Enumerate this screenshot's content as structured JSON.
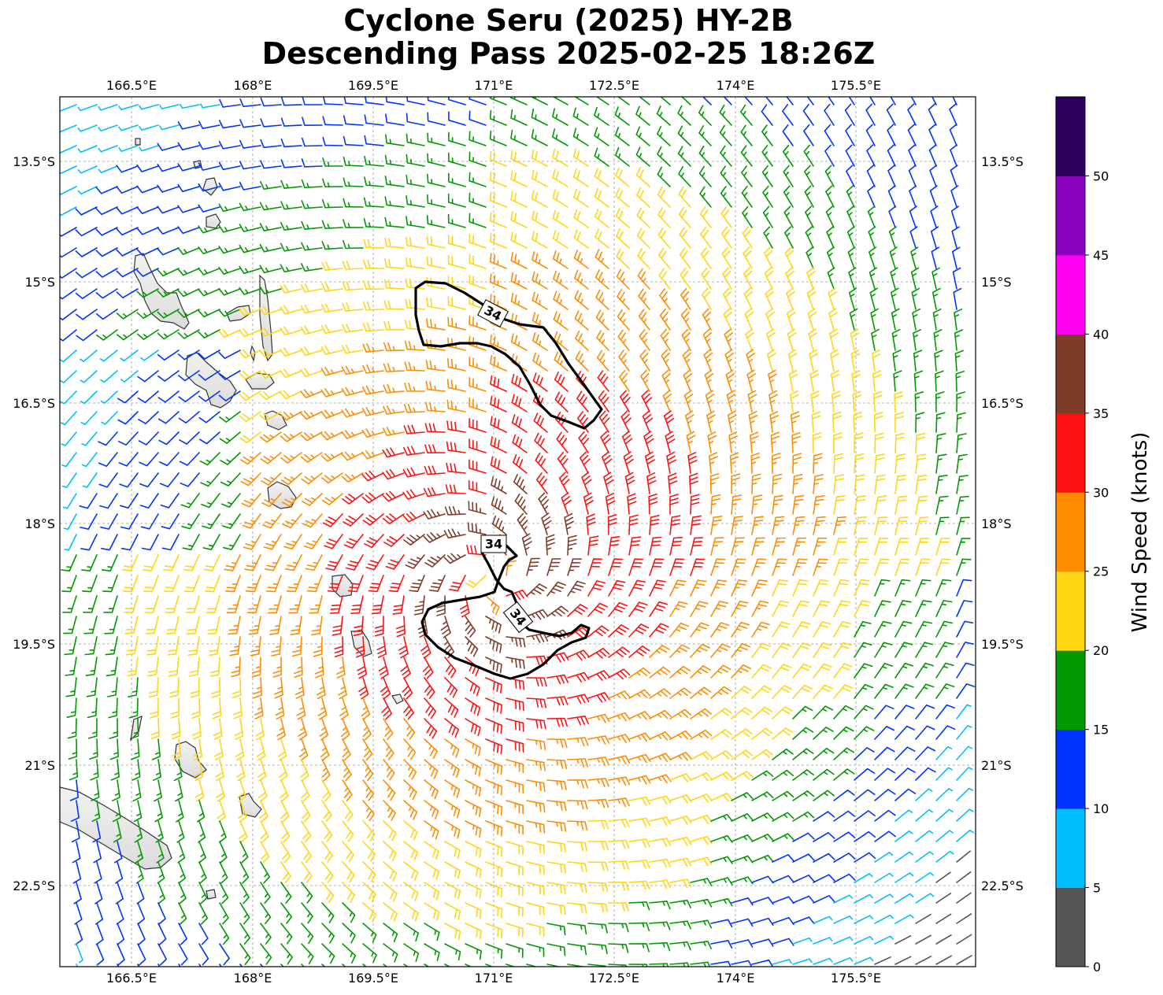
{
  "title": {
    "line1": "Cyclone Seru (2025) HY-2B",
    "line2": "Descending Pass 2025-02-25 18:26Z"
  },
  "axes": {
    "lon_ticks": [
      "166.5°E",
      "168°E",
      "169.5°E",
      "171°E",
      "172.5°E",
      "174°E",
      "175.5°E"
    ],
    "lat_ticks": [
      "13.5°S",
      "15°S",
      "16.5°S",
      "18°S",
      "19.5°S",
      "21°S",
      "22.5°S"
    ]
  },
  "colorbar": {
    "label": "Wind Speed (knots)",
    "ticks": [
      "0",
      "5",
      "10",
      "15",
      "20",
      "25",
      "30",
      "35",
      "40",
      "45",
      "50"
    ],
    "colors": [
      "#555555",
      "#00bfff",
      "#0033ff",
      "#009900",
      "#ffd514",
      "#ff8c00",
      "#ff1111",
      "#7f3b2a",
      "#ff00f0",
      "#8a00bf",
      "#2d0060"
    ]
  },
  "contour_labels": [
    "34",
    "34",
    "34"
  ],
  "chart_data": {
    "type": "wind-barb map",
    "title": "Cyclone Seru (2025) HY-2B Descending Pass 2025-02-25 18:26Z",
    "variable": "Wind Speed (knots)",
    "lon_range": [
      165.5,
      176.9
    ],
    "lat_range": [
      -23.5,
      -12.7
    ],
    "color_bins_knots": [
      0,
      5,
      10,
      15,
      20,
      25,
      30,
      35,
      40,
      45,
      50
    ],
    "cyclone_center": {
      "lon": 170.9,
      "lat": -18.9
    },
    "contour_level_knots": 34,
    "grid": true
  }
}
